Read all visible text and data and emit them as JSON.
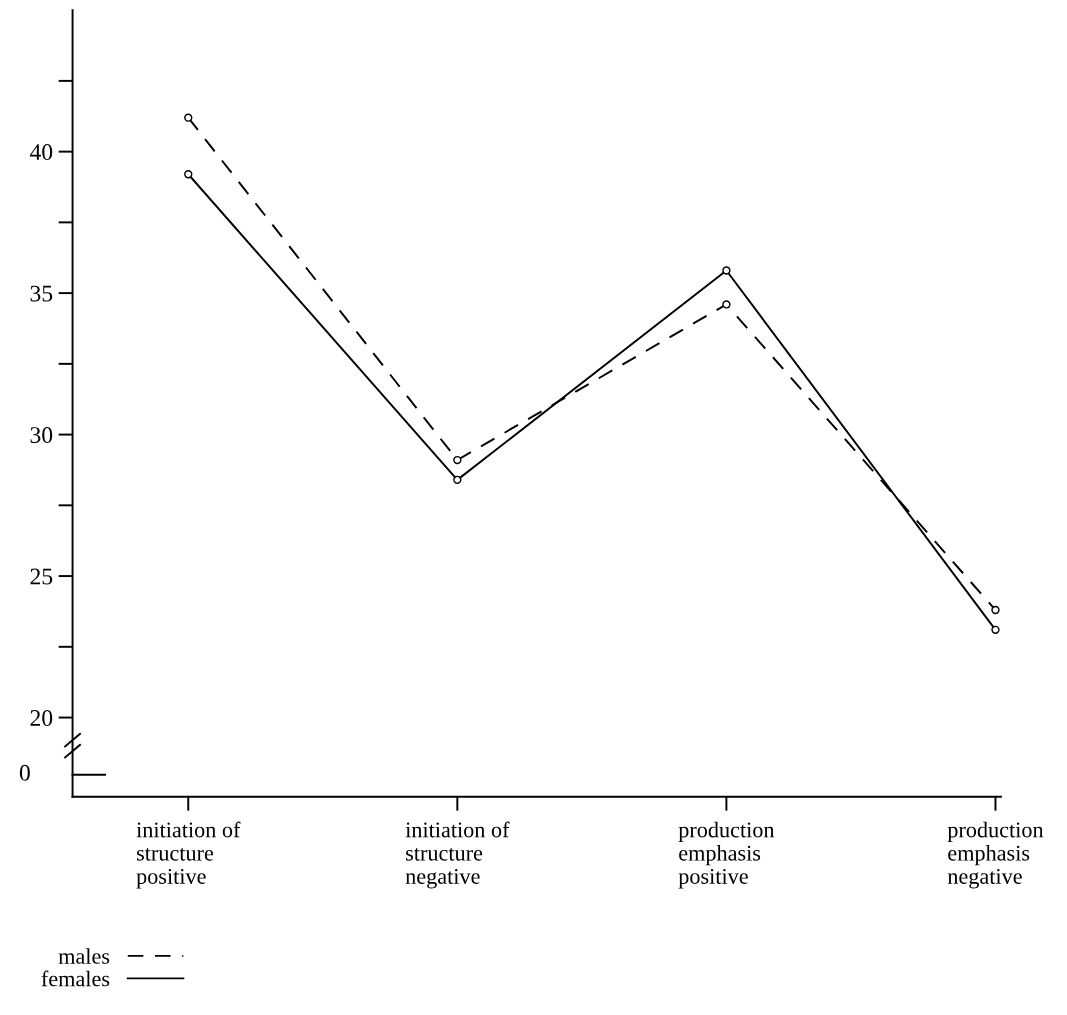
{
  "chart_data": {
    "type": "line",
    "categories": [
      "initiation of\nstructure\npositive",
      "initiation of\nstructure\nnegative",
      "production\nemphasis\npositive",
      "production\nemphasis\nnegative"
    ],
    "series": [
      {
        "name": "males",
        "color": "#000000",
        "line_style": "dashed",
        "values": [
          41.2,
          29.1,
          34.6,
          23.8
        ]
      },
      {
        "name": "females",
        "color": "#000000",
        "line_style": "solid",
        "values": [
          39.2,
          28.4,
          35.8,
          23.1
        ]
      }
    ],
    "ylim": [
      17.2,
      45
    ],
    "annotations": [
      "0"
    ],
    "yticks": [
      20,
      {
        "value": 22.5,
        "label": null
      },
      25,
      {
        "value": 27.5,
        "label": null
      },
      30,
      {
        "value": 32.5,
        "label": null
      },
      35,
      {
        "value": 37.5,
        "label": null
      },
      40,
      {
        "value": 42.5,
        "label": null
      }
    ],
    "marker": "circle",
    "grid": false,
    "legend": "bottom left"
  }
}
